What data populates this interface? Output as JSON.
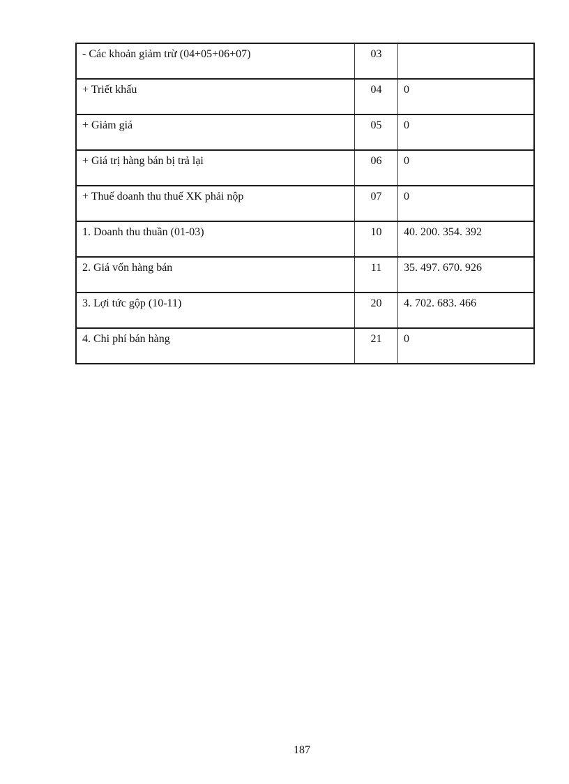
{
  "page": {
    "number": "187"
  },
  "table": {
    "rows": [
      {
        "label": "- Các khoản giảm trừ (04+05+06+07)",
        "code": "03",
        "value": ""
      },
      {
        "label": "+ Triết khấu",
        "code": "04",
        "value": "0"
      },
      {
        "label": "+ Giảm giá",
        "code": "05",
        "value": "0"
      },
      {
        "label": "+ Giá trị hàng bán bị trả lại",
        "code": "06",
        "value": "0"
      },
      {
        "label": "+ Thuế doanh thu thuế XK phải nộp",
        "code": "07",
        "value": "0"
      },
      {
        "label": "1. Doanh thu thuần (01-03)",
        "code": "10",
        "value": "40. 200. 354. 392"
      },
      {
        "label": "2. Giá vốn hàng bán",
        "code": "11",
        "value": "35. 497. 670. 926"
      },
      {
        "label": "3. Lợi tức gộp (10-11)",
        "code": "20",
        "value": "4. 702. 683. 466"
      },
      {
        "label": "4. Chi phí bán hàng",
        "code": "21",
        "value": "0"
      }
    ]
  }
}
